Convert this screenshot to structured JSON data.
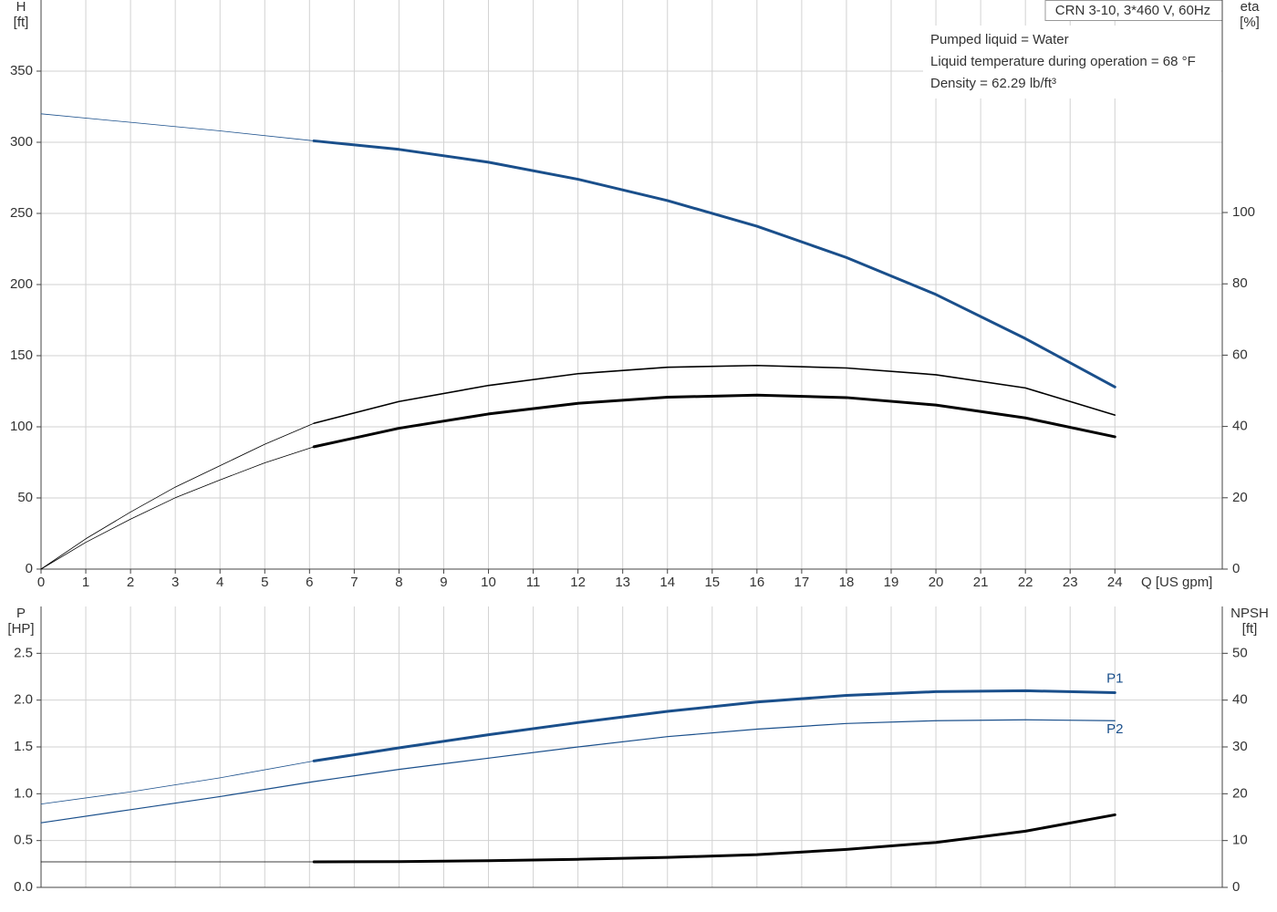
{
  "chart_data": [
    {
      "type": "line",
      "title": "CRN 3-10, 3*460 V, 60Hz",
      "annotations": [
        "Pumped liquid = Water",
        "Liquid temperature during operation = 68 °F",
        "Density = 62.29 lb/ft³"
      ],
      "xlabel": "Q [US gpm]",
      "ylabel": [
        "H",
        "[ft]"
      ],
      "y2label": [
        "eta",
        "[%]"
      ],
      "xlim": [
        0,
        26.4
      ],
      "xticks": [
        0,
        1,
        2,
        3,
        4,
        5,
        6,
        7,
        8,
        9,
        10,
        11,
        12,
        13,
        14,
        15,
        16,
        17,
        18,
        19,
        20,
        21,
        22,
        23,
        24
      ],
      "xtick_labels": true,
      "ylim": [
        0,
        400
      ],
      "yticks": [
        0,
        50,
        100,
        150,
        200,
        250,
        300,
        350
      ],
      "y2lim": [
        0,
        159.6
      ],
      "y2ticks": [
        0,
        20,
        40,
        60,
        80,
        100
      ],
      "grid": true,
      "series": [
        {
          "color": "#1a4f8b",
          "width": 0.8,
          "x": [
            0,
            2,
            4,
            6.1
          ],
          "values": [
            320,
            314,
            308,
            301
          ]
        },
        {
          "color": "#1a4f8b",
          "width": 3,
          "x": [
            6.1,
            8,
            10,
            12,
            14,
            16,
            18,
            20,
            22,
            24
          ],
          "values": [
            301,
            295,
            286,
            274,
            259,
            241,
            219,
            193,
            162,
            128
          ]
        },
        {
          "color": "#000000",
          "width": 0.8,
          "axis": "y2",
          "x": [
            0,
            1,
            2,
            3,
            4,
            5,
            6.1
          ],
          "values": [
            0,
            8.5,
            16,
            23,
            29,
            35,
            40.9
          ]
        },
        {
          "color": "#000000",
          "width": 1.6,
          "axis": "y2",
          "x": [
            6.1,
            8,
            10,
            12,
            14,
            16,
            18,
            20,
            22,
            24
          ],
          "values": [
            40.9,
            47,
            51.5,
            54.8,
            56.6,
            57.1,
            56.4,
            54.5,
            50.8,
            43.2
          ]
        },
        {
          "color": "#000000",
          "width": 0.8,
          "axis": "y2",
          "x": [
            0,
            1,
            2,
            3,
            4,
            5,
            6.1
          ],
          "values": [
            0,
            7.5,
            14,
            20,
            25,
            29.8,
            34.3
          ]
        },
        {
          "color": "#000000",
          "width": 3,
          "axis": "y2",
          "x": [
            6.1,
            8,
            10,
            12,
            14,
            16,
            18,
            20,
            22,
            24
          ],
          "values": [
            34.3,
            39.5,
            43.5,
            46.5,
            48.2,
            48.8,
            48.1,
            46,
            42.4,
            37.1
          ]
        }
      ]
    },
    {
      "type": "line",
      "ylabel": [
        "P",
        "[HP]"
      ],
      "y2label": [
        "NPSH",
        "[ft]"
      ],
      "xlim": [
        0,
        26.4
      ],
      "xticks": [
        0,
        1,
        2,
        3,
        4,
        5,
        6,
        7,
        8,
        9,
        10,
        11,
        12,
        13,
        14,
        15,
        16,
        17,
        18,
        19,
        20,
        21,
        22,
        23,
        24
      ],
      "xtick_labels": false,
      "ylim": [
        0,
        3.0
      ],
      "yticks": [
        {
          "value": 0,
          "label": "0.0"
        },
        0.5,
        {
          "value": 1,
          "label": "1.0"
        },
        1.5,
        {
          "value": 2,
          "label": "2.0"
        },
        2.5
      ],
      "y2lim": [
        0,
        60
      ],
      "y2ticks": [
        0,
        10,
        20,
        30,
        40,
        50
      ],
      "grid": true,
      "series": [
        {
          "color": "#1a4f8b",
          "width": 0.8,
          "x": [
            0,
            2,
            4,
            6.1
          ],
          "values": [
            0.89,
            1.02,
            1.17,
            1.35
          ]
        },
        {
          "name": "P1",
          "color": "#1a4f8b",
          "width": 3,
          "x": [
            6.1,
            8,
            10,
            12,
            14,
            16,
            18,
            20,
            22,
            24
          ],
          "values": [
            1.35,
            1.49,
            1.63,
            1.76,
            1.88,
            1.98,
            2.05,
            2.09,
            2.1,
            2.08
          ]
        },
        {
          "name": "P2",
          "color": "#1a4f8b",
          "width": 1.2,
          "x": [
            0,
            2,
            4,
            6.1,
            8,
            10,
            12,
            14,
            16,
            18,
            20,
            22,
            24
          ],
          "values": [
            0.69,
            0.83,
            0.97,
            1.13,
            1.26,
            1.38,
            1.5,
            1.61,
            1.69,
            1.75,
            1.78,
            1.79,
            1.78
          ]
        },
        {
          "color": "#000000",
          "width": 0.8,
          "axis": "y2",
          "x": [
            0,
            6.1
          ],
          "values": [
            5.45,
            5.45
          ]
        },
        {
          "color": "#000000",
          "width": 3,
          "axis": "y2",
          "x": [
            6.1,
            8,
            10,
            12,
            14,
            16,
            18,
            20,
            22,
            24
          ],
          "values": [
            5.45,
            5.5,
            5.7,
            6,
            6.4,
            7,
            8.1,
            9.6,
            12,
            15.5
          ]
        }
      ]
    }
  ]
}
